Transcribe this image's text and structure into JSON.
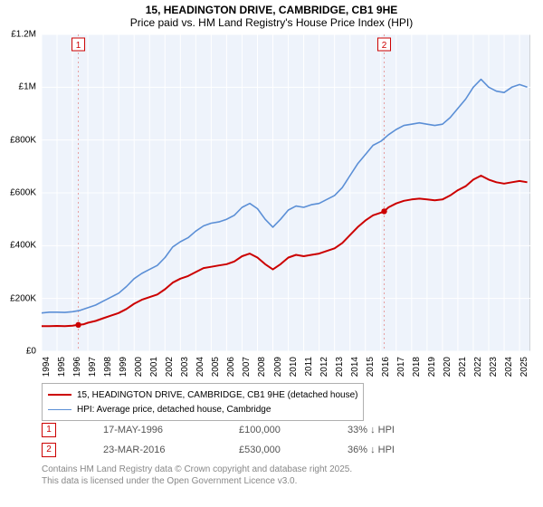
{
  "title": {
    "line1": "15, HEADINGTON DRIVE, CAMBRIDGE, CB1 9HE",
    "line2": "Price paid vs. HM Land Registry's House Price Index (HPI)",
    "fontsize": 12,
    "color": "#000000"
  },
  "chart": {
    "type": "line",
    "plot_bg": "#eef3fb",
    "grid_color": "#ffffff",
    "border_color": "#b0b0b0",
    "x_range": [
      1994,
      2025.7
    ],
    "y_range": [
      0,
      1200000
    ],
    "y_ticks": [
      0,
      200000,
      400000,
      600000,
      800000,
      1000000,
      1200000
    ],
    "y_tick_labels": [
      "£0",
      "£200K",
      "£400K",
      "£600K",
      "£800K",
      "£1M",
      "£1.2M"
    ],
    "x_ticks": [
      1994,
      1995,
      1996,
      1997,
      1998,
      1999,
      2000,
      2001,
      2002,
      2003,
      2004,
      2005,
      2006,
      2007,
      2008,
      2009,
      2010,
      2011,
      2012,
      2013,
      2014,
      2015,
      2016,
      2017,
      2018,
      2019,
      2020,
      2021,
      2022,
      2023,
      2024,
      2025
    ],
    "tick_fontsize": 10,
    "series": [
      {
        "name": "property",
        "legend": "15, HEADINGTON DRIVE, CAMBRIDGE, CB1 9HE (detached house)",
        "color": "#cc0000",
        "width": 2,
        "data": [
          [
            1994.0,
            95000
          ],
          [
            1994.5,
            95000
          ],
          [
            1995.0,
            96000
          ],
          [
            1995.5,
            95000
          ],
          [
            1996.0,
            97000
          ],
          [
            1996.38,
            100000
          ],
          [
            1996.7,
            102000
          ],
          [
            1997.0,
            108000
          ],
          [
            1997.5,
            115000
          ],
          [
            1998.0,
            125000
          ],
          [
            1998.5,
            135000
          ],
          [
            1999.0,
            145000
          ],
          [
            1999.5,
            160000
          ],
          [
            2000.0,
            180000
          ],
          [
            2000.5,
            195000
          ],
          [
            2001.0,
            205000
          ],
          [
            2001.5,
            215000
          ],
          [
            2002.0,
            235000
          ],
          [
            2002.5,
            260000
          ],
          [
            2003.0,
            275000
          ],
          [
            2003.5,
            285000
          ],
          [
            2004.0,
            300000
          ],
          [
            2004.5,
            315000
          ],
          [
            2005.0,
            320000
          ],
          [
            2005.5,
            325000
          ],
          [
            2006.0,
            330000
          ],
          [
            2006.5,
            340000
          ],
          [
            2007.0,
            360000
          ],
          [
            2007.5,
            370000
          ],
          [
            2008.0,
            355000
          ],
          [
            2008.5,
            330000
          ],
          [
            2009.0,
            310000
          ],
          [
            2009.5,
            330000
          ],
          [
            2010.0,
            355000
          ],
          [
            2010.5,
            365000
          ],
          [
            2011.0,
            360000
          ],
          [
            2011.5,
            365000
          ],
          [
            2012.0,
            370000
          ],
          [
            2012.5,
            380000
          ],
          [
            2013.0,
            390000
          ],
          [
            2013.5,
            410000
          ],
          [
            2014.0,
            440000
          ],
          [
            2014.5,
            470000
          ],
          [
            2015.0,
            495000
          ],
          [
            2015.5,
            515000
          ],
          [
            2016.0,
            525000
          ],
          [
            2016.22,
            530000
          ],
          [
            2016.5,
            545000
          ],
          [
            2017.0,
            560000
          ],
          [
            2017.5,
            570000
          ],
          [
            2018.0,
            575000
          ],
          [
            2018.5,
            578000
          ],
          [
            2019.0,
            575000
          ],
          [
            2019.5,
            572000
          ],
          [
            2020.0,
            575000
          ],
          [
            2020.5,
            590000
          ],
          [
            2021.0,
            610000
          ],
          [
            2021.5,
            625000
          ],
          [
            2022.0,
            650000
          ],
          [
            2022.5,
            665000
          ],
          [
            2023.0,
            650000
          ],
          [
            2023.5,
            640000
          ],
          [
            2024.0,
            635000
          ],
          [
            2024.5,
            640000
          ],
          [
            2025.0,
            645000
          ],
          [
            2025.5,
            640000
          ]
        ]
      },
      {
        "name": "hpi",
        "legend": "HPI: Average price, detached house, Cambridge",
        "color": "#5b8fd6",
        "width": 1.6,
        "data": [
          [
            1994.0,
            145000
          ],
          [
            1994.5,
            148000
          ],
          [
            1995.0,
            148000
          ],
          [
            1995.5,
            147000
          ],
          [
            1996.0,
            150000
          ],
          [
            1996.5,
            155000
          ],
          [
            1997.0,
            165000
          ],
          [
            1997.5,
            175000
          ],
          [
            1998.0,
            190000
          ],
          [
            1998.5,
            205000
          ],
          [
            1999.0,
            220000
          ],
          [
            1999.5,
            245000
          ],
          [
            2000.0,
            275000
          ],
          [
            2000.5,
            295000
          ],
          [
            2001.0,
            310000
          ],
          [
            2001.5,
            325000
          ],
          [
            2002.0,
            355000
          ],
          [
            2002.5,
            395000
          ],
          [
            2003.0,
            415000
          ],
          [
            2003.5,
            430000
          ],
          [
            2004.0,
            455000
          ],
          [
            2004.5,
            475000
          ],
          [
            2005.0,
            485000
          ],
          [
            2005.5,
            490000
          ],
          [
            2006.0,
            500000
          ],
          [
            2006.5,
            515000
          ],
          [
            2007.0,
            545000
          ],
          [
            2007.5,
            560000
          ],
          [
            2008.0,
            540000
          ],
          [
            2008.5,
            500000
          ],
          [
            2009.0,
            470000
          ],
          [
            2009.5,
            500000
          ],
          [
            2010.0,
            535000
          ],
          [
            2010.5,
            550000
          ],
          [
            2011.0,
            545000
          ],
          [
            2011.5,
            555000
          ],
          [
            2012.0,
            560000
          ],
          [
            2012.5,
            575000
          ],
          [
            2013.0,
            590000
          ],
          [
            2013.5,
            620000
          ],
          [
            2014.0,
            665000
          ],
          [
            2014.5,
            710000
          ],
          [
            2015.0,
            745000
          ],
          [
            2015.5,
            780000
          ],
          [
            2016.0,
            795000
          ],
          [
            2016.5,
            820000
          ],
          [
            2017.0,
            840000
          ],
          [
            2017.5,
            855000
          ],
          [
            2018.0,
            860000
          ],
          [
            2018.5,
            865000
          ],
          [
            2019.0,
            860000
          ],
          [
            2019.5,
            855000
          ],
          [
            2020.0,
            860000
          ],
          [
            2020.5,
            885000
          ],
          [
            2021.0,
            920000
          ],
          [
            2021.5,
            955000
          ],
          [
            2022.0,
            1000000
          ],
          [
            2022.5,
            1030000
          ],
          [
            2023.0,
            1000000
          ],
          [
            2023.5,
            985000
          ],
          [
            2024.0,
            980000
          ],
          [
            2024.5,
            1000000
          ],
          [
            2025.0,
            1010000
          ],
          [
            2025.5,
            1000000
          ]
        ]
      }
    ],
    "sale_markers": [
      {
        "n": 1,
        "x": 1996.38,
        "y": 100000,
        "line_color": "#e7a0a0"
      },
      {
        "n": 2,
        "x": 2016.22,
        "y": 530000,
        "line_color": "#e7a0a0"
      }
    ]
  },
  "legend_box": {
    "border": "#b0b0b0",
    "fontsize": 10
  },
  "markers_table": {
    "rows": [
      {
        "badge": "1",
        "date": "17-MAY-1996",
        "price": "£100,000",
        "pct": "33% ↓ HPI"
      },
      {
        "badge": "2",
        "date": "23-MAR-2016",
        "price": "£530,000",
        "pct": "36% ↓ HPI"
      }
    ],
    "badge_border": "#cc0000",
    "text_color": "#555555",
    "fontsize": 11
  },
  "footnote": {
    "line1": "Contains HM Land Registry data © Crown copyright and database right 2025.",
    "line2": "This data is licensed under the Open Government Licence v3.0.",
    "color": "#888888",
    "fontsize": 10
  }
}
